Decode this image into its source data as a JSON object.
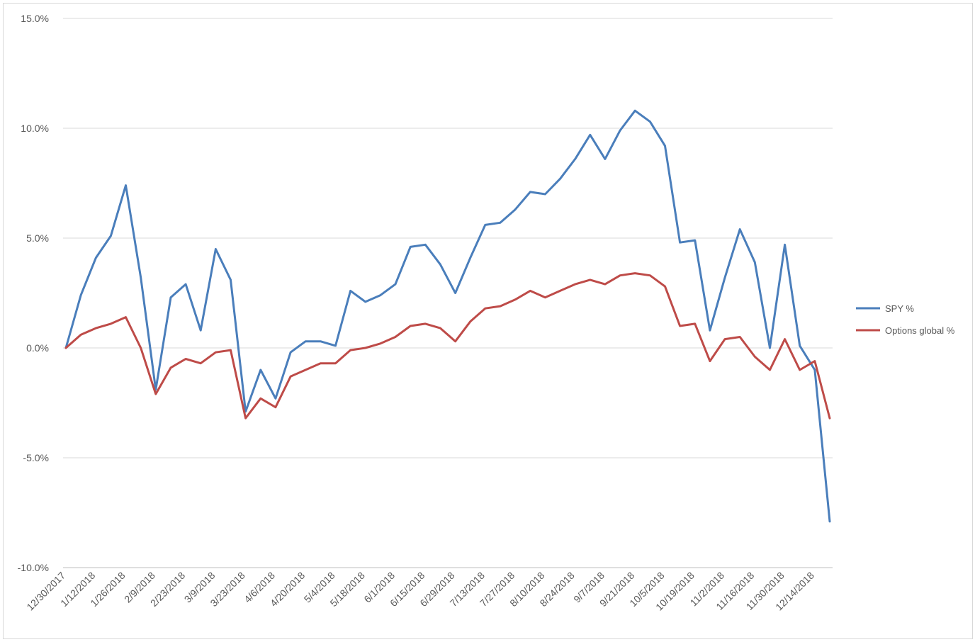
{
  "chart_data": {
    "type": "line",
    "title": "",
    "xlabel": "",
    "ylabel": "",
    "ylim": [
      -0.1,
      0.15
    ],
    "yticks": [
      {
        "value": 0.15,
        "label": "15.0%"
      },
      {
        "value": 0.1,
        "label": "10.0%"
      },
      {
        "value": 0.05,
        "label": "5.0%"
      },
      {
        "value": 0.0,
        "label": "0.0%"
      },
      {
        "value": -0.05,
        "label": "-5.0%"
      },
      {
        "value": -0.1,
        "label": "-10.0%"
      }
    ],
    "grid": true,
    "legend_position": "right",
    "x": [
      "12/30/2017",
      "1/5/2018",
      "1/12/2018",
      "1/19/2018",
      "1/26/2018",
      "2/2/2018",
      "2/9/2018",
      "2/16/2018",
      "2/23/2018",
      "3/2/2018",
      "3/9/2018",
      "3/16/2018",
      "3/23/2018",
      "3/30/2018",
      "4/6/2018",
      "4/13/2018",
      "4/20/2018",
      "4/27/2018",
      "5/4/2018",
      "5/11/2018",
      "5/18/2018",
      "5/25/2018",
      "6/1/2018",
      "6/8/2018",
      "6/15/2018",
      "6/22/2018",
      "6/29/2018",
      "7/6/2018",
      "7/13/2018",
      "7/20/2018",
      "7/27/2018",
      "8/3/2018",
      "8/10/2018",
      "8/17/2018",
      "8/24/2018",
      "8/31/2018",
      "9/7/2018",
      "9/14/2018",
      "9/21/2018",
      "9/28/2018",
      "10/5/2018",
      "10/12/2018",
      "10/19/2018",
      "10/26/2018",
      "11/2/2018",
      "11/9/2018",
      "11/16/2018",
      "11/23/2018",
      "11/30/2018",
      "12/7/2018",
      "12/14/2018",
      "12/21/2018"
    ],
    "x_tick_labels": [
      "12/30/2017",
      "1/12/2018",
      "1/26/2018",
      "2/9/2018",
      "2/23/2018",
      "3/9/2018",
      "3/23/2018",
      "4/6/2018",
      "4/20/2018",
      "5/4/2018",
      "5/18/2018",
      "6/1/2018",
      "6/15/2018",
      "6/29/2018",
      "7/13/2018",
      "7/27/2018",
      "8/10/2018",
      "8/24/2018",
      "9/7/2018",
      "9/21/2018",
      "10/5/2018",
      "10/19/2018",
      "11/2/2018",
      "11/16/2018",
      "11/30/2018",
      "12/14/2018"
    ],
    "series": [
      {
        "name": "SPY %",
        "color": "#4a7ebb",
        "values": [
          0.0,
          0.024,
          0.041,
          0.051,
          0.074,
          0.032,
          -0.019,
          0.023,
          0.029,
          0.008,
          0.045,
          0.031,
          -0.029,
          -0.01,
          -0.023,
          -0.002,
          0.003,
          0.003,
          0.001,
          0.026,
          0.021,
          0.024,
          0.029,
          0.046,
          0.047,
          0.038,
          0.025,
          0.041,
          0.056,
          0.057,
          0.063,
          0.071,
          0.07,
          0.077,
          0.086,
          0.097,
          0.086,
          0.099,
          0.108,
          0.103,
          0.092,
          0.048,
          0.049,
          0.008,
          0.032,
          0.054,
          0.039,
          0.0,
          0.047,
          0.001,
          -0.01,
          -0.079
        ]
      },
      {
        "name": "Options global %",
        "color": "#be4b48",
        "values": [
          0.0,
          0.006,
          0.009,
          0.011,
          0.014,
          0.0,
          -0.021,
          -0.009,
          -0.005,
          -0.007,
          -0.002,
          -0.001,
          -0.032,
          -0.023,
          -0.027,
          -0.013,
          -0.01,
          -0.007,
          -0.007,
          -0.001,
          0.0,
          0.002,
          0.005,
          0.01,
          0.011,
          0.009,
          0.003,
          0.012,
          0.018,
          0.019,
          0.022,
          0.026,
          0.023,
          0.026,
          0.029,
          0.031,
          0.029,
          0.033,
          0.034,
          0.033,
          0.028,
          0.01,
          0.011,
          -0.006,
          0.004,
          0.005,
          -0.004,
          -0.01,
          0.004,
          -0.01,
          -0.006,
          -0.032
        ]
      }
    ]
  }
}
